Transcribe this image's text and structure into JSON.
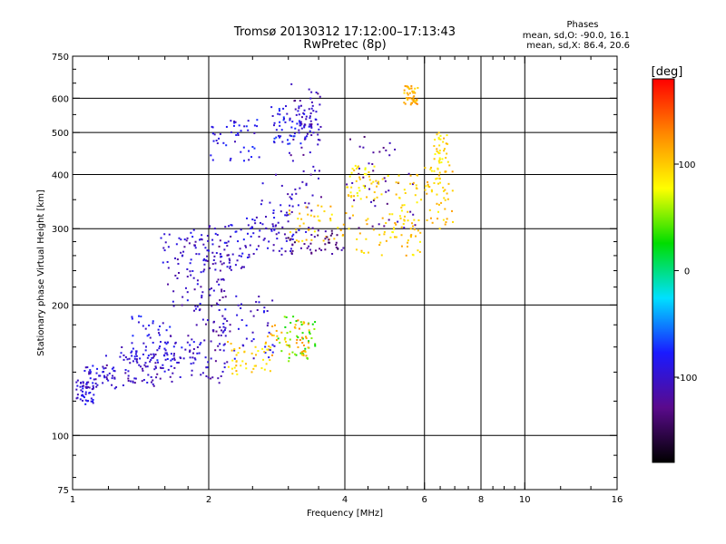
{
  "chart_data": {
    "type": "scatter",
    "title": "Tromsø 20130312 17:12:00–17:13:43",
    "subtitle": "RwPretec (8p)",
    "xlabel": "Frequency [MHz]",
    "ylabel": "Stationary phase Virtual Height [km]",
    "x_scale": "log",
    "y_scale": "log",
    "xlim": [
      1,
      16
    ],
    "ylim": [
      75,
      750
    ],
    "x_ticks": [
      1,
      2,
      4,
      6,
      8,
      10,
      16
    ],
    "x_tick_labels": [
      "1",
      "2",
      "4",
      "6",
      "8",
      "10",
      "16"
    ],
    "x_minor_ticks": [
      1.2,
      1.4,
      1.6,
      1.8,
      2.5,
      3,
      3.5,
      4.5,
      5,
      5.5,
      6.5,
      7,
      7.5,
      8.5,
      9,
      9.5,
      12,
      14
    ],
    "y_ticks": [
      75,
      100,
      200,
      300,
      400,
      500,
      600,
      750
    ],
    "y_tick_labels": [
      "75",
      "100",
      "200",
      "300",
      "400",
      "500",
      "600",
      "750"
    ],
    "y_minor_ticks": [
      80,
      90,
      120,
      140,
      160,
      180,
      220,
      240,
      260,
      280,
      350,
      450,
      550,
      650,
      700
    ],
    "x_grid": [
      2,
      4,
      6,
      8,
      10
    ],
    "y_grid": [
      100,
      200,
      300,
      400,
      500,
      600
    ],
    "grid": true,
    "legend": {
      "title": "Phases",
      "lines": [
        "mean, sd,O: -90.0, 16.1",
        "mean, sd,X:  86.4, 20.6"
      ]
    },
    "colorbar": {
      "label": "[deg]",
      "range": [
        -180,
        180
      ],
      "ticks": [
        100,
        0,
        -100
      ],
      "tick_labels": [
        "100",
        "0",
        "-100"
      ],
      "colormap": "rainbow",
      "stops": [
        "#000000",
        "#5a0a8c",
        "#1a1aff",
        "#00e0ff",
        "#00dd00",
        "#ffff00",
        "#ff8800",
        "#ff0000"
      ]
    },
    "series": [
      {
        "x": [
          1.02,
          1.12
        ],
        "y": [
          118,
          134
        ],
        "phase": -95
      },
      {
        "x": [
          1.05,
          1.25
        ],
        "y": [
          128,
          145
        ],
        "phase": -100
      },
      {
        "x": [
          1.15,
          1.55
        ],
        "y": [
          130,
          155
        ],
        "phase": -105
      },
      {
        "x": [
          1.28,
          1.75
        ],
        "y": [
          132,
          160
        ],
        "phase": -100
      },
      {
        "x": [
          1.55,
          2.0
        ],
        "y": [
          135,
          165
        ],
        "phase": -95
      },
      {
        "x": [
          1.35,
          1.65
        ],
        "y": [
          148,
          190
        ],
        "phase": -90
      },
      {
        "x": [
          1.62,
          1.98
        ],
        "y": [
          160,
          290
        ],
        "phase": -100
      },
      {
        "x": [
          1.85,
          2.25
        ],
        "y": [
          170,
          305
        ],
        "phase": -110
      },
      {
        "x": [
          2.0,
          2.2
        ],
        "y": [
          132,
          230
        ],
        "phase": -110
      },
      {
        "x": [
          2.15,
          2.8
        ],
        "y": [
          150,
          215
        ],
        "phase": -95
      },
      {
        "x": [
          2.2,
          2.75
        ],
        "y": [
          138,
          165
        ],
        "phase": 95
      },
      {
        "x": [
          2.85,
          3.45
        ],
        "y": [
          148,
          190
        ],
        "phase": 40
      },
      {
        "x": [
          2.7,
          3.35
        ],
        "y": [
          152,
          185
        ],
        "phase": 110
      },
      {
        "x": [
          1.55,
          2.1
        ],
        "y": [
          240,
          295
        ],
        "phase": -100
      },
      {
        "x": [
          2.0,
          2.5
        ],
        "y": [
          240,
          310
        ],
        "phase": -95
      },
      {
        "x": [
          2.4,
          3.1
        ],
        "y": [
          260,
          330
        ],
        "phase": -100
      },
      {
        "x": [
          2.6,
          3.4
        ],
        "y": [
          280,
          400
        ],
        "phase": -100
      },
      {
        "x": [
          3.0,
          3.55
        ],
        "y": [
          330,
          650
        ],
        "phase": -115
      },
      {
        "x": [
          3.15,
          3.55
        ],
        "y": [
          480,
          580
        ],
        "phase": -95
      },
      {
        "x": [
          2.0,
          2.6
        ],
        "y": [
          430,
          540
        ],
        "phase": -90
      },
      {
        "x": [
          2.75,
          3.2
        ],
        "y": [
          470,
          580
        ],
        "phase": -85
      },
      {
        "x": [
          3.0,
          4.2
        ],
        "y": [
          280,
          340
        ],
        "phase": 100
      },
      {
        "x": [
          3.0,
          4.0
        ],
        "y": [
          260,
          300
        ],
        "phase": -130
      },
      {
        "x": [
          4.0,
          5.8
        ],
        "y": [
          300,
          500
        ],
        "phase": -120
      },
      {
        "x": [
          4.2,
          5.9
        ],
        "y": [
          260,
          320
        ],
        "phase": 100
      },
      {
        "x": [
          4.8,
          5.9
        ],
        "y": [
          280,
          400
        ],
        "phase": 95
      },
      {
        "x": [
          4.0,
          4.8
        ],
        "y": [
          350,
          420
        ],
        "phase": 90
      },
      {
        "x": [
          6.0,
          7.0
        ],
        "y": [
          300,
          420
        ],
        "phase": 100
      },
      {
        "x": [
          6.3,
          6.8
        ],
        "y": [
          380,
          500
        ],
        "phase": 95
      },
      {
        "x": [
          5.4,
          5.8
        ],
        "y": [
          580,
          640
        ],
        "phase": 110
      }
    ]
  }
}
